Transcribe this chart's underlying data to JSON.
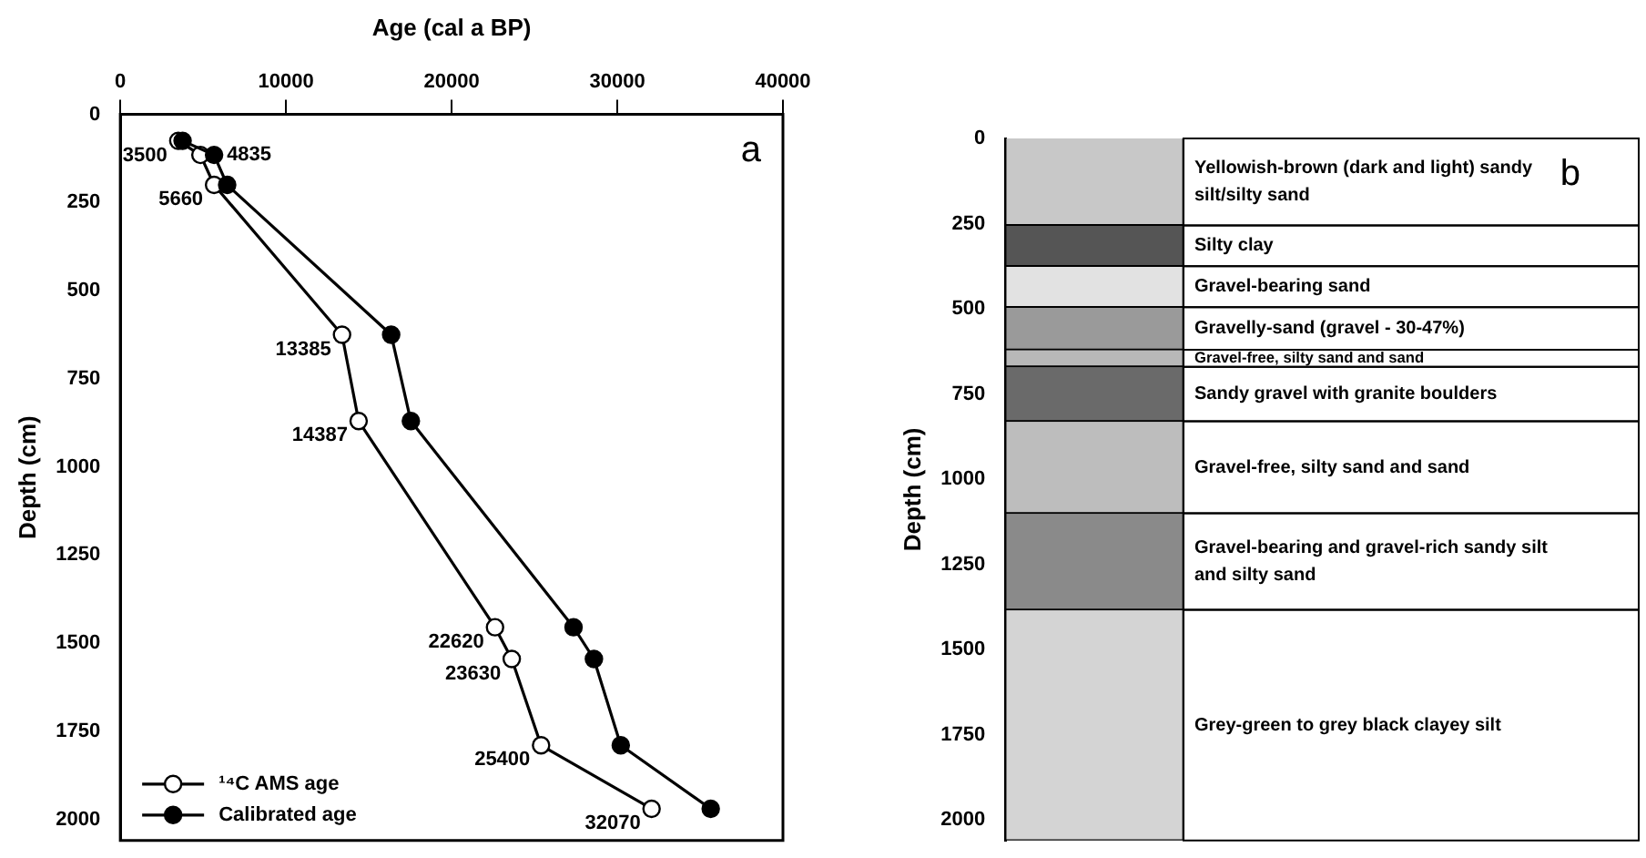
{
  "chart_data": [
    {
      "type": "line",
      "xlabel": "Age (cal a BP)",
      "ylabel": "Depth (cm)",
      "xlim": [
        0,
        40000
      ],
      "xticks": [
        0,
        10000,
        20000,
        30000,
        40000
      ],
      "ylim": [
        2060,
        0
      ],
      "yticks": [
        0,
        250,
        500,
        750,
        1000,
        1250,
        1500,
        1750,
        2000
      ],
      "grid": false,
      "legend": "bottom left",
      "marker": "circle",
      "annotations": [
        "a",
        {
          "text": "3500",
          "x": 3500,
          "y": 75
        },
        {
          "text": "4835",
          "x": 4835,
          "y": 115
        },
        {
          "text": "5660",
          "x": 5660,
          "y": 200
        },
        {
          "text": "13385",
          "x": 13385,
          "y": 625
        },
        {
          "text": "14387",
          "x": 14387,
          "y": 870
        },
        {
          "text": "22620",
          "x": 22620,
          "y": 1455
        },
        {
          "text": "23630",
          "x": 23630,
          "y": 1545
        },
        {
          "text": "25400",
          "x": 25400,
          "y": 1790
        },
        {
          "text": "32070",
          "x": 32070,
          "y": 1970
        }
      ],
      "series": [
        {
          "name": "¹⁴C AMS age",
          "color": "#000000",
          "x": [
            3500,
            4835,
            5660,
            13385,
            14387,
            22620,
            23630,
            25400,
            32070
          ],
          "values": [
            75,
            115,
            200,
            625,
            870,
            1455,
            1545,
            1790,
            1970
          ]
        },
        {
          "name": "Calibrated age",
          "color": "#000000",
          "x": [
            3760,
            5660,
            6450,
            16350,
            17540,
            27360,
            28590,
            30210,
            35640
          ],
          "values": [
            75,
            115,
            200,
            625,
            870,
            1455,
            1545,
            1790,
            1970
          ]
        }
      ]
    },
    {
      "type": "bar",
      "stacked": true,
      "ylabel": "Depth (cm)",
      "categories": [
        null
      ],
      "ylim": [
        2060,
        0
      ],
      "yticks": [
        0,
        250,
        500,
        750,
        1000,
        1250,
        1500,
        1750,
        2000
      ],
      "grid": false,
      "tick_labels": "y",
      "annotations": [
        "b"
      ],
      "series": [
        {
          "name": "Yellowish-brown (dark and light) sandy silt/silty sand",
          "color": "#c8c8c8",
          "values": [
            255
          ]
        },
        {
          "name": "Silty clay",
          "color": "#555555",
          "values": [
            120
          ]
        },
        {
          "name": "Gravel-bearing sand",
          "color": "#e2e2e2",
          "values": [
            120
          ]
        },
        {
          "name": "Gravelly-sand (gravel - 30-47%)",
          "color": "#9a9a9a",
          "values": [
            125
          ]
        },
        {
          "name": "Gravel-free, silty sand and sand",
          "color": "#b8b8b8",
          "values": [
            50
          ]
        },
        {
          "name": "Sandy gravel with granite boulders",
          "color": "#6a6a6a",
          "values": [
            160
          ]
        },
        {
          "name": "Gravel-free, silty sand and sand",
          "color": "#bdbdbd",
          "values": [
            270
          ]
        },
        {
          "name": "Gravel-bearing and gravel-rich sandy silt and silty sand",
          "color": "#8a8a8a",
          "values": [
            283
          ]
        },
        {
          "name": "Grey-green to grey black clayey silt",
          "color": "#d4d4d4",
          "values": [
            677
          ]
        }
      ]
    }
  ]
}
